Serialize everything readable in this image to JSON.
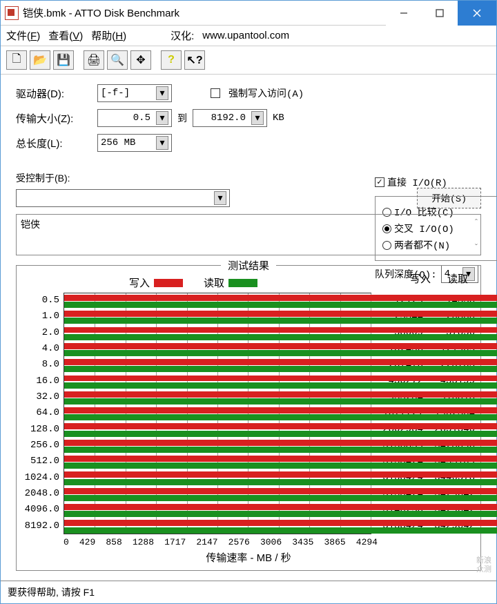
{
  "window": {
    "title": "铠侠.bmk - ATTO Disk Benchmark"
  },
  "menu": {
    "file": "文件",
    "file_key": "F",
    "view": "查看",
    "view_key": "V",
    "help": "帮助",
    "help_key": "H",
    "localize_label": "汉化:",
    "localize_url": "www.upantool.com"
  },
  "config": {
    "drive_label": "驱动器(D):",
    "drive_value": "[-f-]",
    "transfer_label": "传输大小(Z):",
    "transfer_from": "0.5",
    "transfer_to_label": "到",
    "transfer_to": "8192.0",
    "transfer_unit": "KB",
    "length_label": "总长度(L):",
    "length_value": "256 MB",
    "force_write_label": "强制写入访问(A)",
    "force_write_checked": false,
    "direct_io_label": "直接 I/O(R)",
    "direct_io_checked": true,
    "io_compare_label": "I/O 比较(C)",
    "cross_io_label": "交叉 I/O(O)",
    "neither_label": "两者都不(N)",
    "selected_radio": "cross",
    "queue_label": "队列深度(Q):",
    "queue_value": "4",
    "controlled_label": "受控制于(B):",
    "start_button": "开始(S)",
    "description": "铠侠"
  },
  "results": {
    "title": "测试结果",
    "write_label": "写入",
    "read_label": "读取",
    "write_color": "#d82020",
    "read_color": "#1a9020",
    "x_axis_label": "传输速率 - MB / 秒",
    "x_ticks": [
      "0",
      "429",
      "858",
      "1288",
      "1717",
      "2147",
      "2576",
      "3006",
      "3435",
      "3865",
      "4294"
    ],
    "x_max": 4294,
    "rows": [
      {
        "size": "0.5",
        "write": 12129,
        "read": 14336
      },
      {
        "size": "1.0",
        "write": 25344,
        "read": 26880
      },
      {
        "size": "2.0",
        "write": 58009,
        "read": 57856
      },
      {
        "size": "4.0",
        "write": 102436,
        "read": 121905
      },
      {
        "size": "8.0",
        "write": 207470,
        "read": 220703
      },
      {
        "size": "16.0",
        "write": 450272,
        "read": 453199
      },
      {
        "size": "32.0",
        "write": 933284,
        "read": 916018
      },
      {
        "size": "64.0",
        "write": 1677721,
        "read": 1902304
      },
      {
        "size": "128.0",
        "write": 2802984,
        "read": 2851340
      },
      {
        "size": "256.0",
        "write": 3136859,
        "read": 3428096
      },
      {
        "size": "512.0",
        "write": 3138424,
        "read": 3455109
      },
      {
        "size": "1024.0",
        "write": 3138424,
        "read": 3446578
      },
      {
        "size": "2048.0",
        "write": 3138424,
        "read": 3429642
      },
      {
        "size": "4096.0",
        "write": 3146250,
        "read": 3429642
      },
      {
        "size": "8192.0",
        "write": 3138424,
        "read": 3429642
      }
    ]
  },
  "statusbar": "要获得帮助, 请按 F1",
  "watermark": {
    "line1": "新浪",
    "line2": "众测"
  }
}
